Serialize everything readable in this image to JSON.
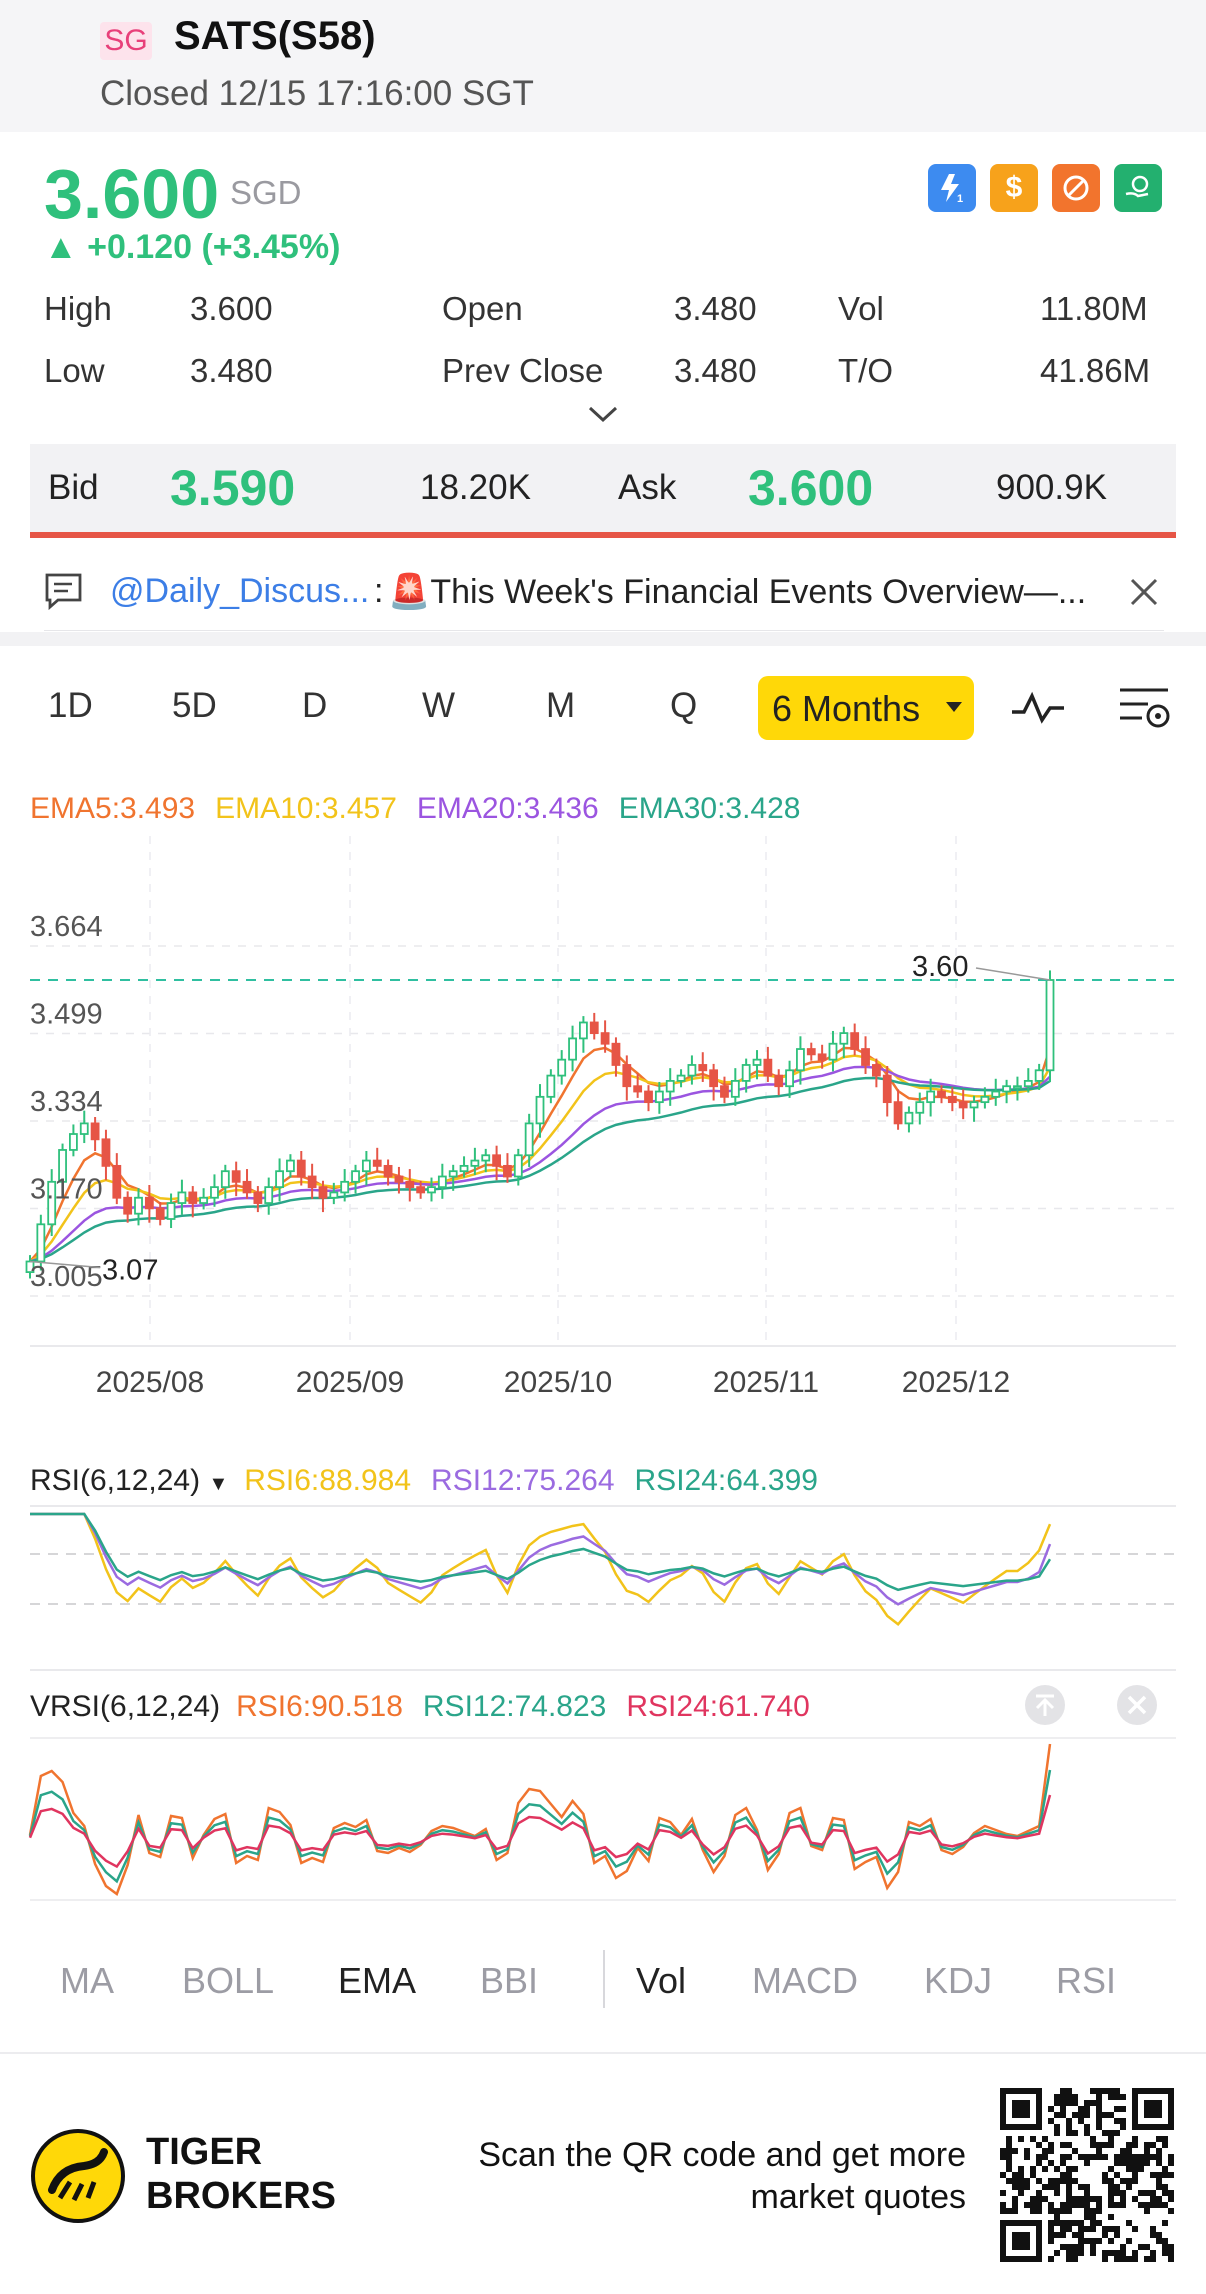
{
  "header": {
    "market_tag": "SG",
    "stock_name": "SATS(S58)",
    "status": "Closed 12/15 17:16:00 SGT"
  },
  "quote": {
    "price": "3.600",
    "currency": "SGD",
    "change": "▲ +0.120 (+3.45%)",
    "badges": [
      {
        "icon": "lightning-1-icon",
        "glyph": "ϟ",
        "color": "#3d8bf0"
      },
      {
        "icon": "dollar-icon",
        "glyph": "$",
        "color": "#f7a21b"
      },
      {
        "icon": "no-short-icon",
        "glyph": "⊘",
        "color": "#f2742d"
      },
      {
        "icon": "hand-coin-icon",
        "glyph": "◎",
        "color": "#23b06f"
      }
    ],
    "stats": {
      "high_label": "High",
      "high": "3.600",
      "open_label": "Open",
      "open": "3.480",
      "vol_label": "Vol",
      "vol": "11.80M",
      "low_label": "Low",
      "low": "3.480",
      "prev_close_label": "Prev Close",
      "prev_close": "3.480",
      "to_label": "T/O",
      "to": "41.86M"
    }
  },
  "bid_ask": {
    "bid_label": "Bid",
    "bid_price": "3.590",
    "bid_size": "18.20K",
    "ask_label": "Ask",
    "ask_price": "3.600",
    "ask_size": "900.9K"
  },
  "news": {
    "author": "@Daily_Discus...",
    "separator": ":",
    "text": "🚨This Week's Financial Events Overview—..."
  },
  "timeframes": [
    "1D",
    "5D",
    "D",
    "W",
    "M",
    "Q"
  ],
  "active_timeframe": "6 Months",
  "ema_legend": [
    {
      "label": "EMA5:3.493",
      "color": "#f0742f"
    },
    {
      "label": "EMA10:3.457",
      "color": "#f2c31a"
    },
    {
      "label": "EMA20:3.436",
      "color": "#9b55e0"
    },
    {
      "label": "EMA30:3.428",
      "color": "#2aa58a"
    }
  ],
  "rsi_legend": {
    "title": "RSI(6,12,24)",
    "items": [
      {
        "label": "RSI6:88.984",
        "color": "#f2c31a"
      },
      {
        "label": "RSI12:75.264",
        "color": "#9b6be0"
      },
      {
        "label": "RSI24:64.399",
        "color": "#2aa58a"
      }
    ]
  },
  "vrsi_legend": {
    "title": "VRSI(6,12,24)",
    "items": [
      {
        "label": "RSI6:90.518",
        "color": "#f0742f"
      },
      {
        "label": "RSI12:74.823",
        "color": "#2aa58a"
      },
      {
        "label": "RSI24:61.740",
        "color": "#e0355f"
      }
    ]
  },
  "indicator_tabs": {
    "main": [
      "MA",
      "BOLL",
      "EMA",
      "BBI"
    ],
    "main_active": "EMA",
    "sub": [
      "Vol",
      "MACD",
      "KDJ",
      "RSI"
    ],
    "sub_active": "Vol"
  },
  "footer": {
    "brand_line1": "TIGER",
    "brand_line2": "BROKERS",
    "cta_line1": "Scan the QR code and get more",
    "cta_line2": "market quotes"
  },
  "chart_data": {
    "type": "candlestick",
    "ylim": [
      3.005,
      3.664
    ],
    "y_ticks": [
      "3.664",
      "3.499",
      "3.334",
      "3.170",
      "3.005"
    ],
    "x_ticks": [
      "2025/08",
      "2025/09",
      "2025/10",
      "2025/11",
      "2025/12"
    ],
    "annotations": {
      "high_label": "3.60",
      "low_label": "3.07"
    },
    "close": [
      3.07,
      3.14,
      3.22,
      3.28,
      3.31,
      3.33,
      3.3,
      3.25,
      3.19,
      3.16,
      3.19,
      3.17,
      3.15,
      3.18,
      3.2,
      3.18,
      3.19,
      3.21,
      3.24,
      3.22,
      3.2,
      3.18,
      3.21,
      3.24,
      3.26,
      3.23,
      3.21,
      3.19,
      3.2,
      3.22,
      3.24,
      3.26,
      3.25,
      3.23,
      3.22,
      3.21,
      3.2,
      3.21,
      3.23,
      3.24,
      3.25,
      3.26,
      3.27,
      3.25,
      3.23,
      3.27,
      3.33,
      3.38,
      3.42,
      3.45,
      3.49,
      3.52,
      3.5,
      3.48,
      3.44,
      3.4,
      3.39,
      3.37,
      3.39,
      3.41,
      3.42,
      3.44,
      3.43,
      3.4,
      3.38,
      3.41,
      3.44,
      3.45,
      3.42,
      3.4,
      3.43,
      3.47,
      3.46,
      3.45,
      3.48,
      3.5,
      3.47,
      3.44,
      3.42,
      3.37,
      3.33,
      3.35,
      3.37,
      3.39,
      3.38,
      3.37,
      3.36,
      3.37,
      3.38,
      3.39,
      3.4,
      3.4,
      3.41,
      3.43,
      3.6
    ],
    "ema5_last": 3.493,
    "ema10_last": 3.457,
    "ema20_last": 3.436,
    "ema30_last": 3.428
  }
}
